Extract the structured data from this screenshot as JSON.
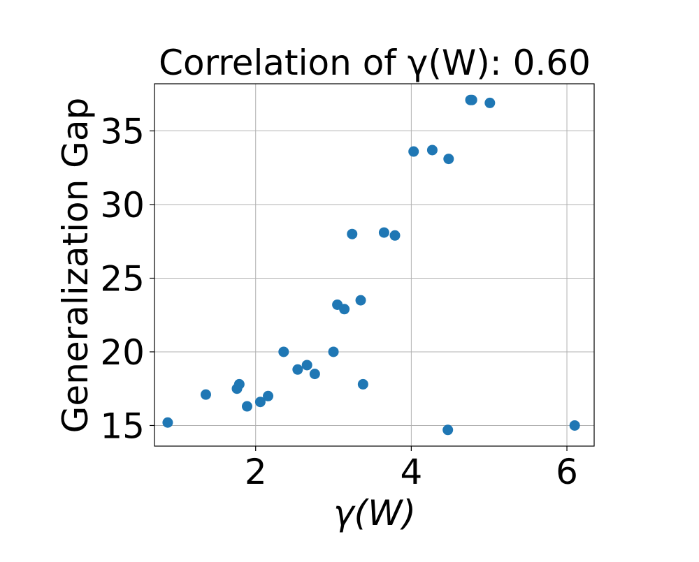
{
  "chart_data": {
    "type": "scatter",
    "title": "Correlation of γ(W): 0.60",
    "xlabel": "γ(W)",
    "ylabel": "Generalization Gap",
    "xlim": [
      0.7,
      6.35
    ],
    "ylim": [
      13.6,
      38.2
    ],
    "xticks": [
      2,
      4,
      6
    ],
    "yticks": [
      15,
      20,
      25,
      30,
      35
    ],
    "grid": true,
    "marker_color": "#1f77b4",
    "points": [
      {
        "x": 0.87,
        "y": 15.2
      },
      {
        "x": 1.36,
        "y": 17.1
      },
      {
        "x": 1.76,
        "y": 17.5
      },
      {
        "x": 1.79,
        "y": 17.8
      },
      {
        "x": 1.89,
        "y": 16.3
      },
      {
        "x": 2.06,
        "y": 16.6
      },
      {
        "x": 2.16,
        "y": 17.0
      },
      {
        "x": 2.36,
        "y": 20.0
      },
      {
        "x": 2.54,
        "y": 18.8
      },
      {
        "x": 2.66,
        "y": 19.1
      },
      {
        "x": 2.76,
        "y": 18.5
      },
      {
        "x": 3.0,
        "y": 20.0
      },
      {
        "x": 3.05,
        "y": 23.2
      },
      {
        "x": 3.14,
        "y": 22.9
      },
      {
        "x": 3.24,
        "y": 28.0
      },
      {
        "x": 3.35,
        "y": 23.5
      },
      {
        "x": 3.38,
        "y": 17.8
      },
      {
        "x": 3.65,
        "y": 28.1
      },
      {
        "x": 3.79,
        "y": 27.9
      },
      {
        "x": 4.03,
        "y": 33.6
      },
      {
        "x": 4.27,
        "y": 33.7
      },
      {
        "x": 4.47,
        "y": 14.7
      },
      {
        "x": 4.48,
        "y": 33.1
      },
      {
        "x": 4.76,
        "y": 37.1
      },
      {
        "x": 4.78,
        "y": 37.1
      },
      {
        "x": 5.01,
        "y": 36.9
      },
      {
        "x": 6.1,
        "y": 15.0
      }
    ]
  }
}
